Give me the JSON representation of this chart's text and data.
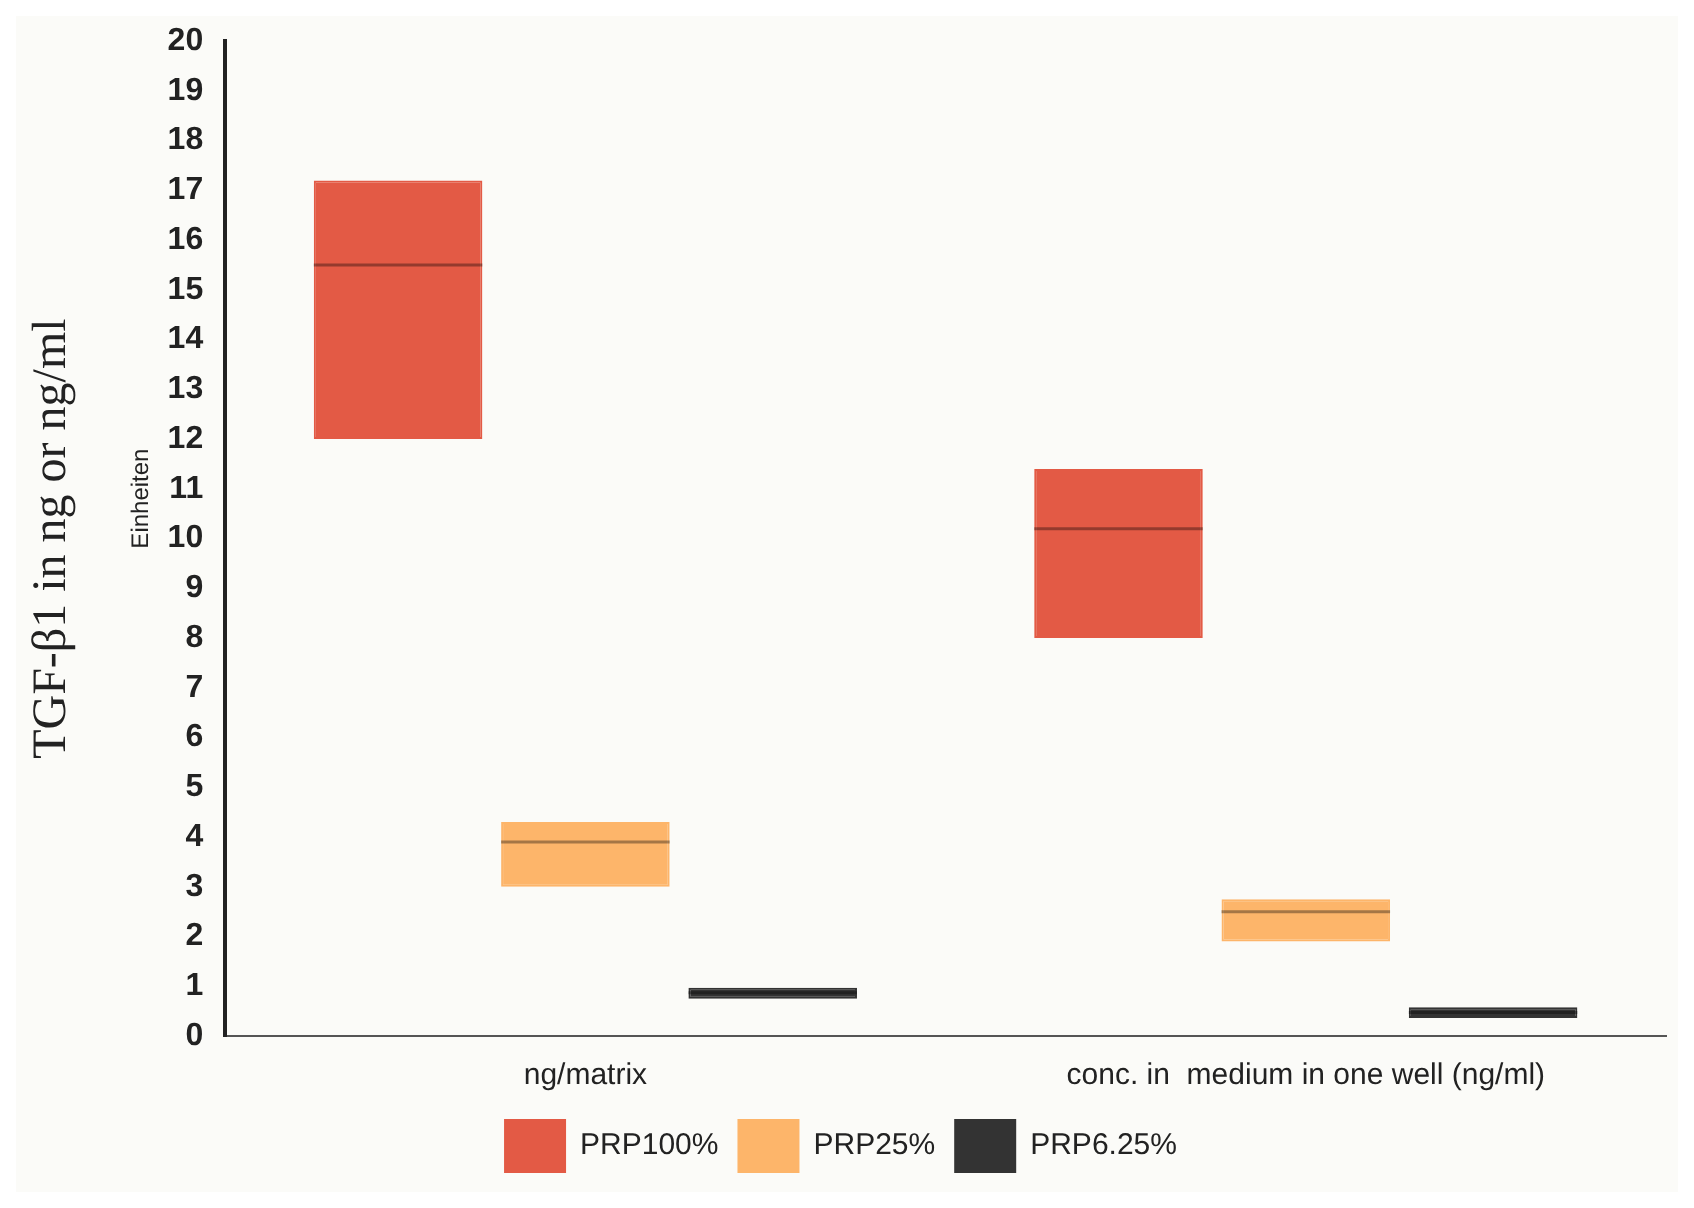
{
  "chart_data": {
    "type": "box",
    "ylabel": "TGF-β1 in ng or ng/ml",
    "annotations": [
      "Einheiten"
    ],
    "categories": [
      "ng/matrix",
      "conc. in  medium in one well (ng/ml)"
    ],
    "ylim": [
      0,
      20
    ],
    "yticks": [
      0,
      1,
      2,
      3,
      4,
      5,
      6,
      7,
      8,
      9,
      10,
      11,
      12,
      13,
      14,
      15,
      16,
      17,
      18,
      19,
      20
    ],
    "grid": false,
    "legend": "bottom",
    "series": [
      {
        "name": "PRP100%",
        "color": "#e35a45",
        "boxes": [
          {
            "low": 12.0,
            "q1": 12.0,
            "median": 15.5,
            "q3": 17.2,
            "high": 17.2
          },
          {
            "low": 8.0,
            "q1": 8.0,
            "median": 10.2,
            "q3": 11.4,
            "high": 11.4
          }
        ]
      },
      {
        "name": "PRP25%",
        "color": "#fdb56a",
        "boxes": [
          {
            "low": 3.0,
            "q1": 3.0,
            "median": 3.9,
            "q3": 4.3,
            "high": 4.3
          },
          {
            "low": 1.9,
            "q1": 1.9,
            "median": 2.5,
            "q3": 2.75,
            "high": 2.75
          }
        ]
      },
      {
        "name": "PRP6.25%",
        "color": "#333333",
        "boxes": [
          {
            "low": 0.75,
            "q1": 0.75,
            "median": 0.87,
            "q3": 0.97,
            "high": 0.97
          },
          {
            "low": 0.36,
            "q1": 0.36,
            "median": 0.47,
            "q3": 0.58,
            "high": 0.58
          }
        ]
      }
    ]
  }
}
